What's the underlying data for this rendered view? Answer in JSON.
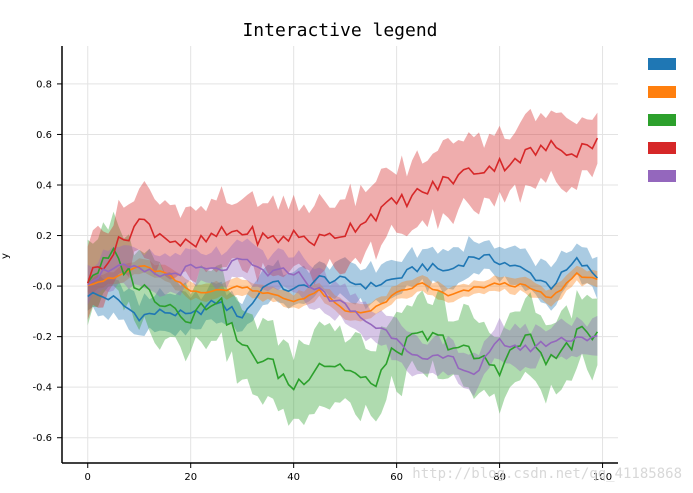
{
  "chart_data": {
    "type": "line",
    "title": "Interactive legend",
    "xlabel": "",
    "ylabel": "y",
    "xlim": [
      0,
      100
    ],
    "ylim": [
      -0.7,
      0.95
    ],
    "xticks": [
      0,
      20,
      40,
      60,
      80,
      100
    ],
    "yticks": [
      -0.6,
      -0.4,
      -0.2,
      0.0,
      0.2,
      0.4,
      0.6,
      0.8
    ],
    "ytick_labels": [
      "-0.6",
      "-0.4",
      "-0.2",
      "-0.0",
      "0.2",
      "0.4",
      "0.6",
      "0.8"
    ],
    "grid": true,
    "legend": "right, color swatches only",
    "band": "shaded band around each line",
    "watermark": "http://blog.csdn.net/qq_41185868",
    "series": [
      {
        "color": "#1f77b4",
        "x": [
          0,
          5,
          10,
          15,
          20,
          25,
          30,
          35,
          40,
          45,
          50,
          55,
          60,
          65,
          70,
          75,
          80,
          85,
          90,
          95,
          99
        ],
        "y": [
          -0.03,
          -0.05,
          -0.12,
          -0.1,
          -0.12,
          -0.06,
          -0.12,
          0.02,
          -0.02,
          0.03,
          0.02,
          0.0,
          0.03,
          0.08,
          0.06,
          0.12,
          0.1,
          0.06,
          0.0,
          0.1,
          0.04
        ],
        "spread": 0.07
      },
      {
        "color": "#ff7f0e",
        "x": [
          0,
          5,
          10,
          15,
          20,
          25,
          30,
          35,
          40,
          45,
          50,
          55,
          60,
          65,
          70,
          75,
          80,
          85,
          90,
          95,
          99
        ],
        "y": [
          0.01,
          0.03,
          0.08,
          0.05,
          -0.02,
          -0.02,
          0.0,
          -0.03,
          -0.06,
          -0.02,
          -0.1,
          -0.1,
          -0.03,
          0.01,
          -0.04,
          -0.01,
          0.01,
          0.0,
          -0.05,
          0.05,
          0.02
        ],
        "spread": 0.03
      },
      {
        "color": "#2ca02c",
        "x": [
          0,
          5,
          10,
          15,
          20,
          25,
          30,
          35,
          40,
          45,
          50,
          55,
          60,
          65,
          70,
          75,
          80,
          85,
          90,
          95,
          99
        ],
        "y": [
          0.03,
          0.12,
          0.0,
          -0.06,
          -0.12,
          -0.04,
          -0.25,
          -0.3,
          -0.4,
          -0.3,
          -0.32,
          -0.4,
          -0.25,
          -0.2,
          -0.22,
          -0.28,
          -0.32,
          -0.2,
          -0.3,
          -0.2,
          -0.18
        ],
        "spread": 0.14
      },
      {
        "color": "#d62728",
        "x": [
          0,
          5,
          10,
          15,
          20,
          25,
          30,
          35,
          40,
          45,
          50,
          55,
          60,
          65,
          70,
          75,
          80,
          85,
          90,
          95,
          99
        ],
        "y": [
          0.03,
          0.14,
          0.26,
          0.2,
          0.15,
          0.2,
          0.22,
          0.18,
          0.2,
          0.18,
          0.22,
          0.28,
          0.33,
          0.37,
          0.42,
          0.46,
          0.48,
          0.52,
          0.55,
          0.54,
          0.58
        ],
        "spread": 0.13
      },
      {
        "color": "#9467bd",
        "x": [
          0,
          5,
          10,
          15,
          20,
          25,
          30,
          35,
          40,
          45,
          50,
          55,
          60,
          65,
          70,
          75,
          80,
          85,
          90,
          95,
          99
        ],
        "y": [
          0.02,
          0.08,
          0.06,
          0.04,
          0.07,
          0.06,
          0.1,
          0.05,
          0.06,
          -0.02,
          -0.08,
          -0.15,
          -0.2,
          -0.3,
          -0.28,
          -0.35,
          -0.22,
          -0.25,
          -0.22,
          -0.2,
          -0.21
        ],
        "spread": 0.07
      }
    ]
  }
}
